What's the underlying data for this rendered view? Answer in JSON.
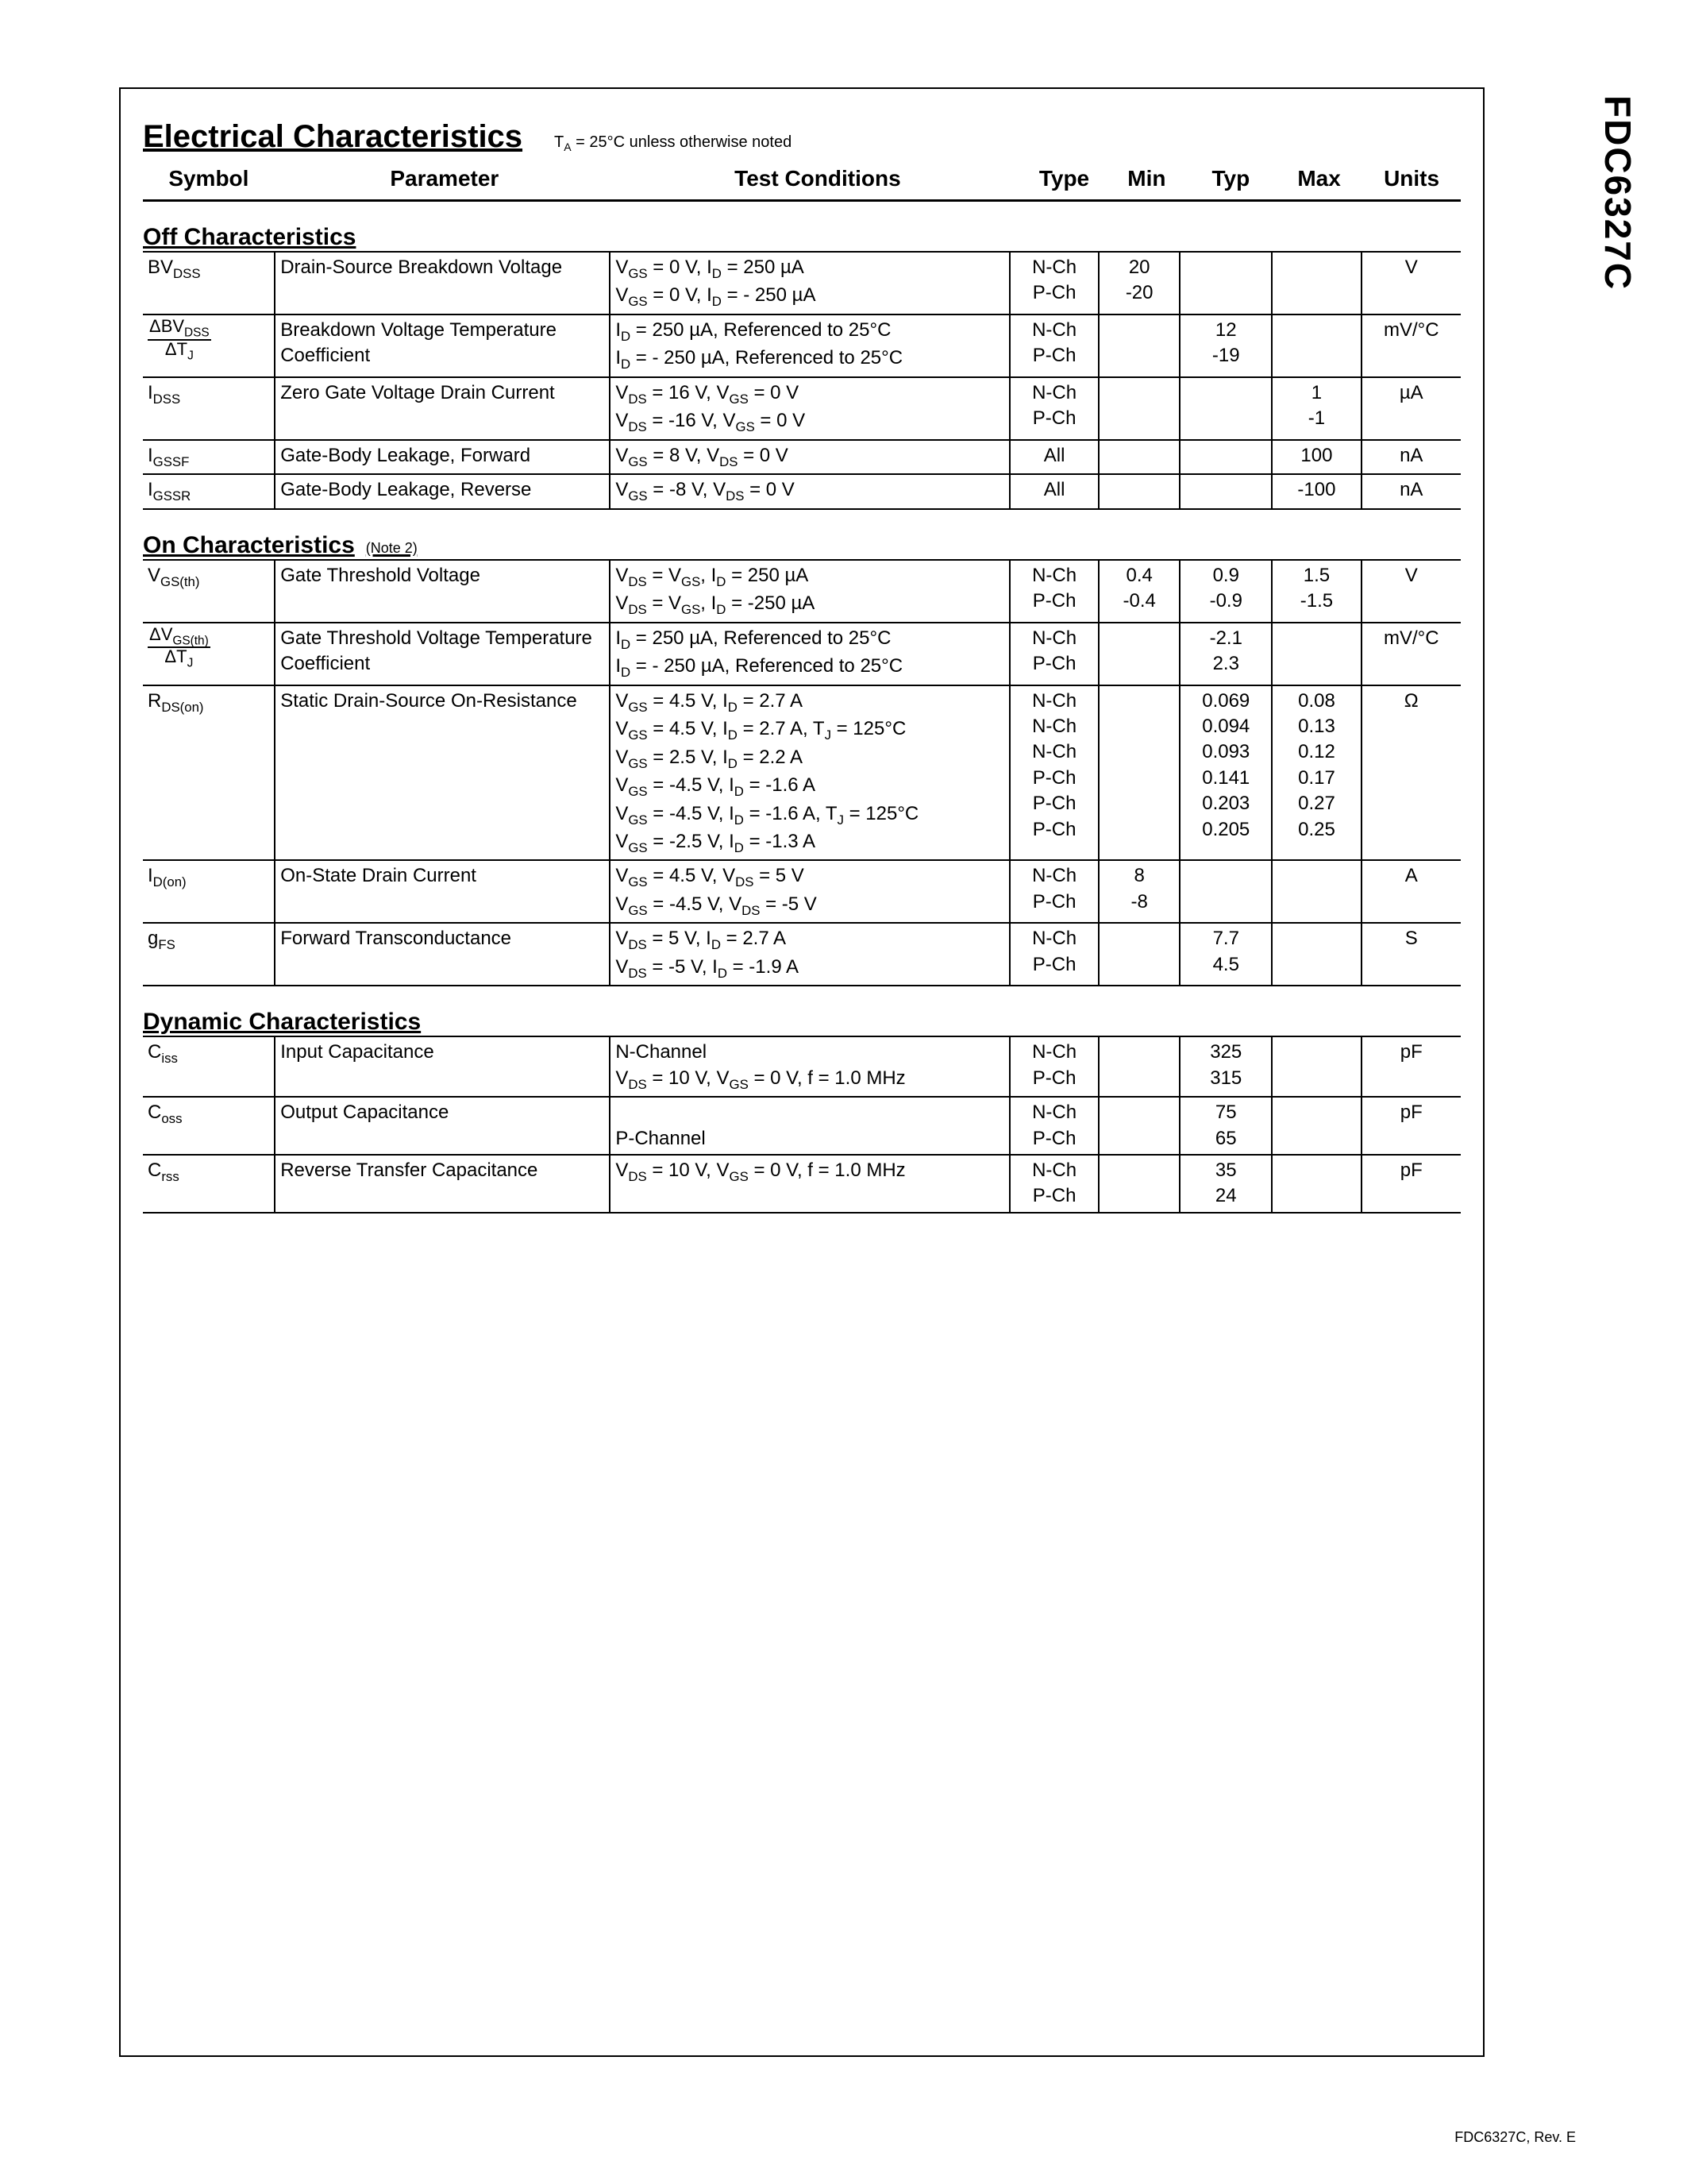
{
  "part_number": "FDC6327C",
  "footer": "FDC6327C, Rev. E",
  "title": "Electrical Characteristics",
  "title_note": "T_A = 25°C unless otherwise noted",
  "header": {
    "symbol": "Symbol",
    "parameter": "Parameter",
    "conditions": "Test Conditions",
    "type": "Type",
    "min": "Min",
    "typ": "Typ",
    "max": "Max",
    "units": "Units"
  },
  "sections": [
    {
      "title": "Off Characteristics",
      "note": "",
      "rows": [
        {
          "symbol_html": "BV<sub>DSS</sub>",
          "parameter": "Drain-Source Breakdown Voltage",
          "conditions_html": "V<sub>GS</sub> = 0 V, I<sub>D</sub> = 250 µA<br>V<sub>GS</sub> = 0 V, I<sub>D</sub> = - 250 µA",
          "type_html": "N-Ch<br>P-Ch",
          "min_html": "20<br>-20",
          "typ_html": "",
          "max_html": "",
          "units": "V"
        },
        {
          "symbol_html": "<span class='frac'><span class='num'>ΔBV<sub>DSS</sub></span><span class='den'>ΔT<sub>J</sub></span></span>",
          "parameter": "Breakdown Voltage Temperature Coefficient",
          "conditions_html": "I<sub>D</sub> = 250 µA, Referenced to 25°C<br>I<sub>D</sub> = - 250 µA, Referenced to 25°C",
          "type_html": "N-Ch<br>P-Ch",
          "min_html": "",
          "typ_html": "12<br>-19",
          "max_html": "",
          "units": "mV/°C"
        },
        {
          "symbol_html": "I<sub>DSS</sub>",
          "parameter": "Zero Gate Voltage Drain Current",
          "conditions_html": "V<sub>DS</sub> = 16 V, V<sub>GS</sub> = 0 V<br>V<sub>DS</sub> = -16 V, V<sub>GS</sub> = 0 V",
          "type_html": "N-Ch<br>P-Ch",
          "min_html": "",
          "typ_html": "",
          "max_html": "1<br>-1",
          "units": "µA"
        },
        {
          "symbol_html": "I<sub>GSSF</sub>",
          "parameter": "Gate-Body Leakage, Forward",
          "conditions_html": "V<sub>GS</sub> = 8 V, V<sub>DS</sub> = 0 V",
          "type_html": "All",
          "min_html": "",
          "typ_html": "",
          "max_html": "100",
          "units": "nA"
        },
        {
          "symbol_html": "I<sub>GSSR</sub>",
          "parameter": "Gate-Body Leakage, Reverse",
          "conditions_html": "V<sub>GS</sub> = -8 V, V<sub>DS</sub> = 0 V",
          "type_html": "All",
          "min_html": "",
          "typ_html": "",
          "max_html": "-100",
          "units": "nA"
        }
      ]
    },
    {
      "title": "On Characteristics",
      "note": "(Note 2)",
      "rows": [
        {
          "symbol_html": "V<sub>GS(th)</sub>",
          "parameter": "Gate Threshold Voltage",
          "conditions_html": "V<sub>DS</sub> = V<sub>GS</sub>, I<sub>D</sub> = 250 µA<br>V<sub>DS</sub> = V<sub>GS</sub>, I<sub>D</sub> = -250 µA",
          "type_html": "N-Ch<br>P-Ch",
          "min_html": "0.4<br>-0.4",
          "typ_html": "0.9<br>-0.9",
          "max_html": "1.5<br>-1.5",
          "units": "V"
        },
        {
          "symbol_html": "<span class='frac'><span class='num'>ΔV<sub>GS(th)</sub></span><span class='den'>ΔT<sub>J</sub></span></span>",
          "parameter": "Gate Threshold Voltage Temperature Coefficient",
          "conditions_html": "I<sub>D</sub> = 250 µA, Referenced to 25°C<br>I<sub>D</sub> = - 250 µA, Referenced to 25°C",
          "type_html": "N-Ch<br>P-Ch",
          "min_html": "",
          "typ_html": "-2.1<br>2.3",
          "max_html": "",
          "units": "mV/°C"
        },
        {
          "symbol_html": "R<sub>DS(on)</sub>",
          "parameter": "Static Drain-Source On-Resistance",
          "conditions_html": "V<sub>GS</sub> = 4.5 V, I<sub>D</sub> = 2.7 A<br>V<sub>GS</sub> = 4.5 V, I<sub>D</sub> = 2.7 A, T<sub>J</sub> = 125°C<br>V<sub>GS</sub> = 2.5 V, I<sub>D</sub> = 2.2 A<br>V<sub>GS</sub> = -4.5 V, I<sub>D</sub> = -1.6 A<br>V<sub>GS</sub> = -4.5 V, I<sub>D</sub> = -1.6 A, T<sub>J</sub> = 125°C<br>V<sub>GS</sub> = -2.5 V, I<sub>D</sub> = -1.3 A",
          "type_html": "N-Ch<br>N-Ch<br>N-Ch<br>P-Ch<br>P-Ch<br>P-Ch",
          "min_html": "",
          "typ_html": "0.069<br>0.094<br>0.093<br>0.141<br>0.203<br>0.205",
          "max_html": "0.08<br>0.13<br>0.12<br>0.17<br>0.27<br>0.25",
          "units": "Ω"
        },
        {
          "symbol_html": "I<sub>D(on)</sub>",
          "parameter": "On-State Drain Current",
          "conditions_html": "V<sub>GS</sub> = 4.5 V, V<sub>DS</sub> = 5 V<br>V<sub>GS</sub> = -4.5 V, V<sub>DS</sub> = -5 V",
          "type_html": "N-Ch<br>P-Ch",
          "min_html": "8<br>-8",
          "typ_html": "",
          "max_html": "",
          "units": "A"
        },
        {
          "symbol_html": "g<sub>FS</sub>",
          "parameter": "Forward Transconductance",
          "conditions_html": "V<sub>DS</sub> = 5 V, I<sub>D</sub> = 2.7 A<br>V<sub>DS</sub> = -5 V, I<sub>D</sub> = -1.9 A",
          "type_html": "N-Ch<br>P-Ch",
          "min_html": "",
          "typ_html": "7.7<br>4.5",
          "max_html": "",
          "units": "S"
        }
      ]
    },
    {
      "title": "Dynamic Characteristics",
      "note": "",
      "rows": [
        {
          "symbol_html": "C<sub>iss</sub>",
          "parameter": "Input Capacitance",
          "conditions_html": "N-Channel<br>V<sub>DS</sub> = 10 V, V<sub>GS</sub> = 0 V, f = 1.0 MHz",
          "type_html": "N-Ch<br>P-Ch",
          "min_html": "",
          "typ_html": "325<br>315",
          "max_html": "",
          "units": "pF"
        },
        {
          "symbol_html": "C<sub>oss</sub>",
          "parameter": "Output Capacitance",
          "conditions_html": "<br>P-Channel",
          "type_html": "N-Ch<br>P-Ch",
          "min_html": "",
          "typ_html": "75<br>65",
          "max_html": "",
          "units": "pF"
        },
        {
          "symbol_html": "C<sub>rss</sub>",
          "parameter": "Reverse Transfer Capacitance",
          "conditions_html": "V<sub>DS</sub> = 10 V, V<sub>GS</sub> = 0 V, f = 1.0 MHz",
          "type_html": "N-Ch<br>P-Ch",
          "min_html": "",
          "typ_html": "35<br>24",
          "max_html": "",
          "units": "pF"
        }
      ]
    }
  ]
}
